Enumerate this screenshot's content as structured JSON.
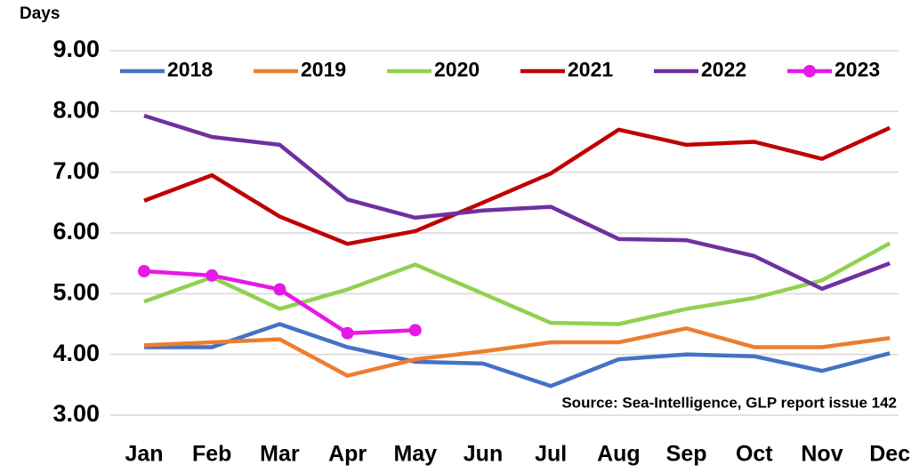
{
  "chart_data": {
    "type": "line",
    "y_label": "Days",
    "annotation": "Source: Sea-Intelligence, GLP report issue 142",
    "categories": [
      "Jan",
      "Feb",
      "Mar",
      "Apr",
      "May",
      "Jun",
      "Jul",
      "Aug",
      "Sep",
      "Oct",
      "Nov",
      "Dec"
    ],
    "ylim": [
      3,
      9
    ],
    "yticks": [
      {
        "value": 3,
        "label": "3.00"
      },
      {
        "value": 4,
        "label": "4.00"
      },
      {
        "value": 5,
        "label": "5.00"
      },
      {
        "value": 6,
        "label": "6.00"
      },
      {
        "value": 7,
        "label": "7.00"
      },
      {
        "value": 8,
        "label": "8.00"
      },
      {
        "value": 9,
        "label": "9.00"
      }
    ],
    "grid": true,
    "legend": "top",
    "series": [
      {
        "name": "2018",
        "color": "#4472c4",
        "values": [
          4.12,
          4.12,
          4.5,
          4.12,
          3.88,
          3.85,
          3.48,
          3.92,
          4.0,
          3.97,
          3.73,
          4.02
        ]
      },
      {
        "name": "2019",
        "color": "#ed7d31",
        "values": [
          4.15,
          4.2,
          4.25,
          3.65,
          3.92,
          4.05,
          4.2,
          4.2,
          4.43,
          4.12,
          4.12,
          4.27
        ]
      },
      {
        "name": "2020",
        "color": "#92d050",
        "values": [
          4.87,
          5.27,
          4.75,
          5.07,
          5.48,
          5.0,
          4.52,
          4.5,
          4.75,
          4.93,
          5.22,
          5.83
        ]
      },
      {
        "name": "2021",
        "color": "#c00000",
        "values": [
          6.53,
          6.95,
          6.27,
          5.82,
          6.03,
          6.5,
          6.98,
          7.7,
          7.45,
          7.5,
          7.22,
          7.73
        ]
      },
      {
        "name": "2022",
        "color": "#7030a0",
        "values": [
          7.93,
          7.58,
          7.45,
          6.55,
          6.25,
          6.37,
          6.43,
          5.9,
          5.88,
          5.62,
          5.08,
          5.5
        ]
      },
      {
        "name": "2023",
        "color": "#e619e6",
        "markers": true,
        "values": [
          5.37,
          5.3,
          5.07,
          4.35,
          4.4,
          null,
          null,
          null,
          null,
          null,
          null,
          null
        ]
      }
    ]
  }
}
